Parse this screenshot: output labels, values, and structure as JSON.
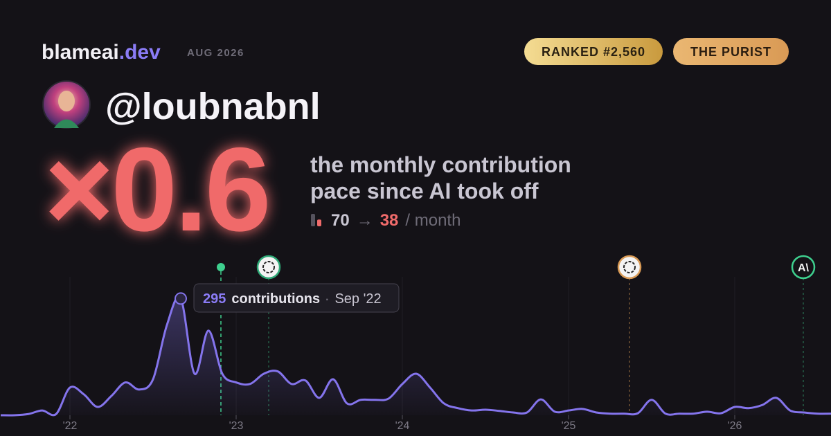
{
  "brand": {
    "name": "blameai",
    "tld": ".dev",
    "period": "AUG 2026"
  },
  "badges": [
    "RANKED #2,560",
    "THE PURIST"
  ],
  "user": {
    "handle": "@loubnabnl"
  },
  "headline": {
    "multiplier": "×0.6",
    "line1": "the monthly contribution",
    "line2": "pace since AI took off"
  },
  "pace": {
    "before": 70,
    "arrow": "→",
    "after": 38,
    "unit": "/ month"
  },
  "tooltip": {
    "label": "contributions",
    "separator": "·",
    "date": "Sep '22",
    "index": 13
  },
  "logo_text": "A\\",
  "chart_data": {
    "type": "line",
    "categories": [
      null,
      null,
      null,
      null,
      null,
      "'22",
      null,
      null,
      null,
      null,
      null,
      null,
      null,
      null,
      null,
      null,
      null,
      "'23",
      null,
      null,
      null,
      null,
      null,
      null,
      null,
      null,
      null,
      null,
      null,
      "'24",
      null,
      null,
      null,
      null,
      null,
      null,
      null,
      null,
      null,
      null,
      null,
      "'25",
      null,
      null,
      null,
      null,
      null,
      null,
      null,
      null,
      null,
      null,
      null,
      "'26",
      null,
      null,
      null,
      null,
      null,
      null,
      null
    ],
    "values": [
      0,
      0,
      3,
      12,
      3,
      70,
      53,
      21,
      49,
      83,
      65,
      91,
      228,
      295,
      105,
      214,
      105,
      83,
      79,
      105,
      111,
      79,
      88,
      44,
      91,
      30,
      39,
      39,
      42,
      79,
      105,
      70,
      30,
      18,
      12,
      14,
      11,
      7,
      7,
      40,
      9,
      12,
      16,
      7,
      4,
      4,
      5,
      39,
      4,
      4,
      4,
      9,
      5,
      21,
      18,
      26,
      44,
      12,
      7,
      4,
      4
    ],
    "color": "#8474ec",
    "ylim": [
      0,
      350
    ],
    "grid": true
  }
}
